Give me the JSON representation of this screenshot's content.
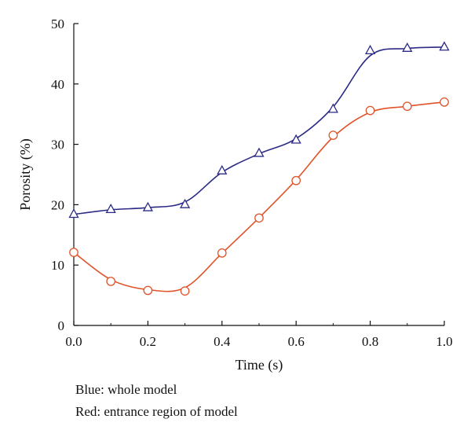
{
  "chart_data": {
    "type": "line",
    "title": "",
    "xlabel": "Time (s)",
    "ylabel": "Porosity (%)",
    "xlim": [
      0,
      1
    ],
    "ylim": [
      0,
      50
    ],
    "xticks": [
      "0.0",
      "0.2",
      "0.4",
      "0.6",
      "0.8",
      "1.0"
    ],
    "yticks": [
      "0",
      "10",
      "20",
      "30",
      "40",
      "50"
    ],
    "grid": false,
    "x": [
      0.0,
      0.1,
      0.2,
      0.3,
      0.4,
      0.5,
      0.6,
      0.7,
      0.8,
      0.9,
      1.0
    ],
    "series": [
      {
        "color": "#2b2a86",
        "marker": "triangle",
        "values": [
          18.4,
          19.2,
          19.5,
          20.0,
          25.6,
          28.5,
          30.7,
          35.8,
          45.5,
          45.9,
          46.1
        ]
      },
      {
        "color": "#e0532a",
        "marker": "circle",
        "values": [
          12.1,
          7.3,
          5.8,
          5.7,
          12.0,
          17.8,
          24.0,
          31.5,
          35.6,
          36.3,
          37.0
        ]
      }
    ],
    "notes": [
      "Blue: whole model",
      "Red: entrance region of model"
    ]
  }
}
